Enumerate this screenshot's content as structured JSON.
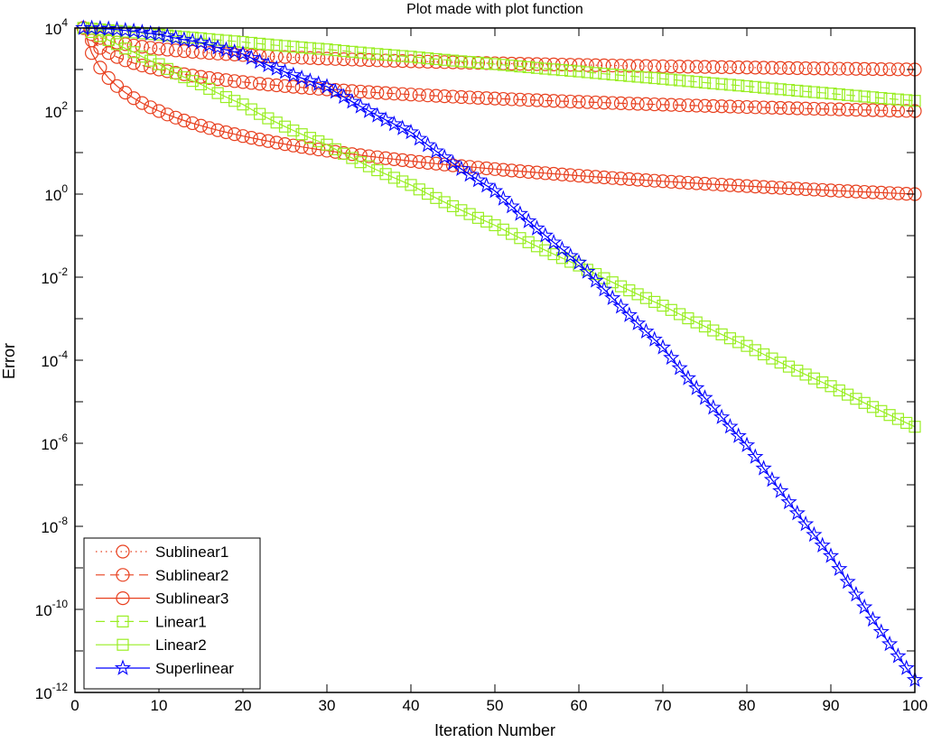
{
  "chart_data": {
    "type": "line",
    "title": "Plot made with plot function",
    "xlabel": "Iteration Number",
    "ylabel": "Error",
    "xscale": "linear",
    "yscale": "log",
    "xlim": [
      0,
      100
    ],
    "ylim": [
      1e-12,
      10000.0
    ],
    "xticks": [
      0,
      10,
      20,
      30,
      40,
      50,
      60,
      70,
      80,
      90,
      100
    ],
    "xtick_labels": [
      "0",
      "10",
      "20",
      "30",
      "40",
      "50",
      "60",
      "70",
      "80",
      "90",
      "100"
    ],
    "ytick_exponents": [
      4,
      3,
      2,
      1,
      0,
      -1,
      -2,
      -3,
      -4,
      -5,
      -6,
      -7,
      -8,
      -9,
      -10,
      -11,
      -12
    ],
    "ytick_labels": [
      {
        "base": "10",
        "exp": "4"
      },
      {
        "base": "10",
        "exp": "2"
      },
      {
        "base": "10",
        "exp": "0"
      },
      {
        "base": "10",
        "exp": "-2"
      },
      {
        "base": "10",
        "exp": "-4"
      },
      {
        "base": "10",
        "exp": "-6"
      },
      {
        "base": "10",
        "exp": "-8"
      },
      {
        "base": "10",
        "exp": "-10"
      },
      {
        "base": "10",
        "exp": "-12"
      }
    ],
    "grid": false,
    "legend_position": "bottom-left",
    "sample_x": [
      1,
      2,
      3,
      4,
      5,
      7,
      10,
      15,
      20,
      30,
      40,
      50,
      60,
      70,
      80,
      90,
      100
    ],
    "marker_every": 1,
    "series": [
      {
        "name": "Sublinear1",
        "color": "#e8401f",
        "line": "dotted",
        "marker": "circle",
        "y": [
          10000,
          7071,
          5774,
          5000,
          4472,
          3780,
          3162,
          2582,
          2236,
          1826,
          1581,
          1414,
          1291,
          1195,
          1118,
          1054,
          1000
        ]
      },
      {
        "name": "Sublinear2",
        "color": "#e8401f",
        "line": "dashed",
        "marker": "circle",
        "y": [
          10000,
          5000,
          3333,
          2500,
          2000,
          1429,
          1000,
          667,
          500,
          333,
          250,
          200,
          167,
          143,
          125,
          111,
          100
        ]
      },
      {
        "name": "Sublinear3",
        "color": "#e8401f",
        "line": "solid",
        "marker": "circle",
        "y": [
          10000,
          2500,
          1111,
          625,
          400,
          204,
          100,
          44.4,
          25,
          11.1,
          6.25,
          4,
          2.78,
          2.04,
          1.56,
          1.23,
          1
        ]
      },
      {
        "name": "Linear1",
        "color": "#99ee22",
        "line": "dashed",
        "marker": "square",
        "y": [
          10000,
          9600,
          9216,
          8847,
          8493,
          7828,
          6925,
          5647,
          4604,
          3061,
          2035,
          1353,
          899,
          598,
          397,
          264,
          176
        ]
      },
      {
        "name": "Linear2",
        "color": "#99ee22",
        "line": "solid",
        "marker": "square",
        "y": [
          10000,
          8000,
          6400,
          5120,
          4096,
          2621,
          1342,
          440,
          144,
          15.5,
          1.66,
          0.178,
          0.0191,
          0.00206,
          0.000221,
          2.37e-05,
          2.5e-06
        ]
      },
      {
        "name": "Superlinear",
        "color": "#0000ff",
        "line": "solid",
        "marker": "star",
        "y": [
          10000,
          9892,
          9714,
          9471,
          9169,
          8407,
          6993,
          4449,
          2364,
          387.8,
          30.9,
          1.19,
          0.0224,
          0.000203,
          8.99e-07,
          1.93e-09,
          2e-12
        ]
      }
    ]
  }
}
